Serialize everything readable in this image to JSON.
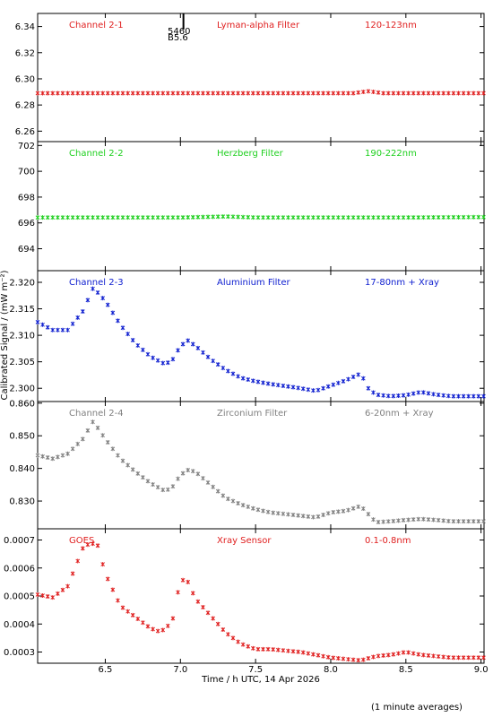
{
  "chart_data": {
    "type": "scatter",
    "xlabel": "Time / h UTC, 14 Apr 2026",
    "ylabel": "Calibrated Signal / (mW m⁻²)",
    "footnote": "(1 minute averages)",
    "x_range": [
      6.05,
      9.02
    ],
    "x_ticks": [
      6.5,
      7.0,
      7.5,
      8.0,
      8.5,
      9.0
    ],
    "x_tick_labels": [
      "6.5",
      "7.0",
      "7.5",
      "8.0",
      "8.5",
      "9.0"
    ],
    "marker_annotation": {
      "x": 7.02,
      "lines": [
        "5460",
        "B5.6"
      ]
    },
    "panels": [
      {
        "channel": "Channel 2-1",
        "filter": "Lyman-alpha Filter",
        "band": "120-123nm",
        "color": "#e02020",
        "ylim": [
          6.252,
          6.35
        ],
        "y_ticks": [
          6.26,
          6.28,
          6.3,
          6.32,
          6.34
        ],
        "y_tick_labels": [
          "6.26",
          "6.28",
          "6.30",
          "6.32",
          "6.34"
        ],
        "x": [
          6.05,
          6.5,
          7.0,
          7.5,
          8.0,
          8.15,
          8.25,
          8.35,
          8.5,
          9.0
        ],
        "y": [
          6.289,
          6.289,
          6.289,
          6.289,
          6.289,
          6.289,
          6.2905,
          6.289,
          6.289,
          6.289
        ]
      },
      {
        "channel": "Channel 2-2",
        "filter": "Herzberg Filter",
        "band": "190-222nm",
        "color": "#20d020",
        "ylim": [
          692.3,
          702.3
        ],
        "y_ticks": [
          694,
          696,
          698,
          700,
          702
        ],
        "y_tick_labels": [
          "694",
          "696",
          "698",
          "700",
          "702"
        ],
        "x": [
          6.05,
          6.5,
          7.0,
          7.3,
          7.5,
          8.0,
          8.5,
          9.0
        ],
        "y": [
          696.42,
          696.42,
          696.42,
          696.5,
          696.42,
          696.42,
          696.42,
          696.45
        ]
      },
      {
        "channel": "Channel 2-3",
        "filter": "Aluminium Filter",
        "band": "17-80nm + Xray",
        "color": "#1020d0",
        "ylim": [
          2.2975,
          2.3222
        ],
        "y_ticks": [
          2.3,
          2.305,
          2.31,
          2.315,
          2.32
        ],
        "y_tick_labels": [
          "2.300",
          "2.305",
          "2.310",
          "2.315",
          "2.320"
        ],
        "x": [
          6.05,
          6.15,
          6.25,
          6.35,
          6.42,
          6.5,
          6.6,
          6.7,
          6.8,
          6.9,
          6.95,
          7.0,
          7.05,
          7.1,
          7.2,
          7.3,
          7.4,
          7.5,
          7.6,
          7.7,
          7.8,
          7.9,
          8.0,
          8.1,
          8.2,
          8.25,
          8.3,
          8.4,
          8.5,
          8.6,
          8.7,
          8.8,
          8.9,
          9.0
        ],
        "y": [
          2.3125,
          2.311,
          2.311,
          2.3145,
          2.319,
          2.3165,
          2.312,
          2.3085,
          2.306,
          2.3045,
          2.3055,
          2.308,
          2.309,
          2.308,
          2.3055,
          2.3035,
          2.302,
          2.3013,
          2.3008,
          2.3004,
          2.3,
          2.2995,
          2.3005,
          2.3015,
          2.3028,
          2.3,
          2.2988,
          2.2985,
          2.2987,
          2.2993,
          2.2988,
          2.2985,
          2.2985,
          2.2985
        ]
      },
      {
        "channel": "Channel 2-4",
        "filter": "Zirconium Filter",
        "band": "6-20nm + Xray",
        "color": "#808080",
        "ylim": [
          0.8215,
          0.8605
        ],
        "y_ticks": [
          0.83,
          0.84,
          0.85,
          0.86
        ],
        "y_tick_labels": [
          "0.830",
          "0.840",
          "0.850",
          "0.860"
        ],
        "x": [
          6.05,
          6.15,
          6.25,
          6.35,
          6.42,
          6.5,
          6.6,
          6.7,
          6.8,
          6.9,
          6.95,
          7.0,
          7.05,
          7.1,
          7.2,
          7.3,
          7.4,
          7.5,
          7.6,
          7.7,
          7.8,
          7.9,
          8.0,
          8.1,
          8.2,
          8.25,
          8.3,
          8.4,
          8.5,
          8.6,
          8.7,
          8.8,
          8.9,
          9.0
        ],
        "y": [
          0.844,
          0.843,
          0.8445,
          0.849,
          0.8545,
          0.849,
          0.843,
          0.839,
          0.8355,
          0.833,
          0.8345,
          0.838,
          0.8395,
          0.839,
          0.835,
          0.831,
          0.829,
          0.8275,
          0.8265,
          0.826,
          0.8255,
          0.825,
          0.8265,
          0.827,
          0.8285,
          0.826,
          0.8235,
          0.8238,
          0.8242,
          0.8245,
          0.8242,
          0.8238,
          0.8238,
          0.8238
        ]
      },
      {
        "channel": "GOES",
        "filter": "Xray Sensor",
        "band": "0.1-0.8nm",
        "color": "#e02020",
        "ylim": [
          0.00026,
          0.00074
        ],
        "y_ticks": [
          0.0003,
          0.0004,
          0.0005,
          0.0006,
          0.0007
        ],
        "y_tick_labels": [
          "0.0003",
          "0.0004",
          "0.0005",
          "0.0006",
          "0.0007"
        ],
        "x": [
          6.05,
          6.15,
          6.25,
          6.35,
          6.4,
          6.45,
          6.5,
          6.6,
          6.7,
          6.8,
          6.85,
          6.9,
          6.95,
          7.0,
          7.05,
          7.1,
          7.2,
          7.3,
          7.4,
          7.5,
          7.6,
          7.7,
          7.8,
          7.9,
          8.0,
          8.1,
          8.2,
          8.3,
          8.4,
          8.5,
          8.6,
          8.7,
          8.8,
          8.9,
          9.0
        ],
        "y": [
          0.000505,
          0.000495,
          0.000535,
          0.00067,
          0.00069,
          0.00068,
          0.00058,
          0.000465,
          0.000425,
          0.000385,
          0.000375,
          0.00038,
          0.00042,
          0.00056,
          0.00055,
          0.00049,
          0.00043,
          0.00037,
          0.00033,
          0.00031,
          0.00031,
          0.000305,
          0.0003,
          0.00029,
          0.00028,
          0.000275,
          0.00027,
          0.000285,
          0.00029,
          0.0003,
          0.00029,
          0.000285,
          0.00028,
          0.00028,
          0.00028
        ]
      }
    ]
  }
}
